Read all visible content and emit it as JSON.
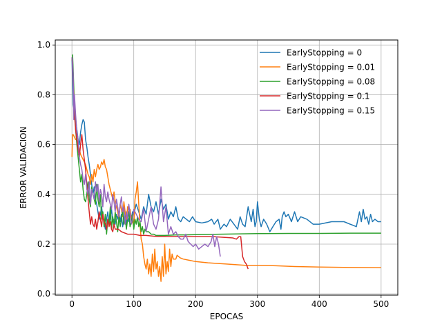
{
  "chart_data": {
    "type": "line",
    "title": "",
    "xlabel": "EPOCAS",
    "ylabel": "ERROR VALIDACION",
    "xlim": [
      -27,
      527
    ],
    "ylim": [
      -0.005,
      1.02
    ],
    "xticks": [
      0,
      100,
      200,
      300,
      400,
      500
    ],
    "yticks": [
      0.0,
      0.2,
      0.4,
      0.6,
      0.8,
      1.0
    ],
    "xtick_labels": [
      "0",
      "100",
      "200",
      "300",
      "400",
      "500"
    ],
    "ytick_labels": [
      "0.0",
      "0.2",
      "0.4",
      "0.6",
      "0.8",
      "1.0"
    ],
    "grid": true,
    "legend_position": "top-right",
    "series": [
      {
        "name": "EarlyStopping = 0",
        "color": "#1f77b4",
        "x": [
          0,
          2,
          4,
          6,
          8,
          10,
          12,
          14,
          16,
          18,
          20,
          22,
          24,
          26,
          28,
          30,
          32,
          34,
          36,
          38,
          40,
          42,
          44,
          46,
          48,
          50,
          52,
          54,
          56,
          58,
          60,
          62,
          64,
          66,
          68,
          70,
          72,
          74,
          76,
          78,
          80,
          82,
          84,
          86,
          88,
          90,
          92,
          94,
          96,
          98,
          100,
          104,
          108,
          112,
          116,
          120,
          124,
          128,
          132,
          136,
          140,
          144,
          148,
          152,
          156,
          160,
          164,
          168,
          172,
          176,
          180,
          185,
          190,
          195,
          200,
          210,
          220,
          226,
          230,
          236,
          240,
          246,
          250,
          256,
          262,
          268,
          272,
          276,
          280,
          285,
          290,
          293,
          296,
          298,
          300,
          303,
          306,
          310,
          315,
          320,
          325,
          330,
          335,
          338,
          340,
          343,
          346,
          350,
          355,
          360,
          365,
          370,
          380,
          390,
          400,
          420,
          440,
          460,
          465,
          468,
          471,
          474,
          477,
          480,
          483,
          486,
          490,
          495,
          500
        ],
        "y": [
          0.95,
          0.76,
          0.73,
          0.7,
          0.66,
          0.62,
          0.6,
          0.65,
          0.68,
          0.7,
          0.69,
          0.62,
          0.59,
          0.55,
          0.52,
          0.48,
          0.44,
          0.4,
          0.43,
          0.38,
          0.36,
          0.33,
          0.3,
          0.32,
          0.35,
          0.31,
          0.29,
          0.26,
          0.3,
          0.33,
          0.28,
          0.31,
          0.34,
          0.29,
          0.3,
          0.28,
          0.32,
          0.3,
          0.33,
          0.29,
          0.32,
          0.27,
          0.3,
          0.33,
          0.28,
          0.31,
          0.29,
          0.34,
          0.3,
          0.33,
          0.32,
          0.36,
          0.33,
          0.3,
          0.35,
          0.32,
          0.4,
          0.35,
          0.33,
          0.37,
          0.32,
          0.38,
          0.34,
          0.36,
          0.3,
          0.33,
          0.31,
          0.35,
          0.3,
          0.29,
          0.31,
          0.3,
          0.29,
          0.31,
          0.29,
          0.285,
          0.29,
          0.3,
          0.28,
          0.3,
          0.26,
          0.28,
          0.27,
          0.3,
          0.28,
          0.26,
          0.31,
          0.28,
          0.27,
          0.35,
          0.29,
          0.34,
          0.27,
          0.29,
          0.37,
          0.3,
          0.27,
          0.3,
          0.28,
          0.25,
          0.27,
          0.29,
          0.3,
          0.26,
          0.31,
          0.33,
          0.31,
          0.32,
          0.29,
          0.33,
          0.29,
          0.31,
          0.3,
          0.28,
          0.28,
          0.29,
          0.29,
          0.27,
          0.33,
          0.29,
          0.34,
          0.3,
          0.31,
          0.28,
          0.32,
          0.29,
          0.3,
          0.29,
          0.29
        ]
      },
      {
        "name": "EarlyStopping = 0.01",
        "color": "#ff7f0e",
        "x": [
          0,
          1,
          2,
          4,
          6,
          8,
          10,
          12,
          14,
          16,
          18,
          20,
          22,
          24,
          26,
          28,
          30,
          32,
          34,
          36,
          38,
          40,
          42,
          44,
          46,
          48,
          50,
          52,
          54,
          56,
          58,
          60,
          62,
          64,
          66,
          68,
          70,
          72,
          74,
          76,
          78,
          80,
          82,
          84,
          86,
          88,
          90,
          92,
          94,
          96,
          98,
          100,
          102,
          104,
          106,
          108,
          110,
          112,
          114,
          116,
          118,
          120,
          122,
          124,
          126,
          128,
          130,
          132,
          134,
          136,
          138,
          140,
          142,
          144,
          146,
          148,
          150,
          152,
          154,
          156,
          158,
          160,
          162,
          164,
          166,
          168,
          170,
          175,
          180,
          190,
          200,
          220,
          250,
          280,
          300,
          330,
          360,
          400,
          450,
          500
        ],
        "y": [
          0.55,
          0.64,
          0.64,
          0.63,
          0.62,
          0.62,
          0.6,
          0.58,
          0.56,
          0.55,
          0.54,
          0.53,
          0.52,
          0.5,
          0.48,
          0.47,
          0.44,
          0.48,
          0.45,
          0.5,
          0.47,
          0.5,
          0.52,
          0.5,
          0.51,
          0.53,
          0.52,
          0.54,
          0.51,
          0.5,
          0.47,
          0.44,
          0.42,
          0.4,
          0.38,
          0.41,
          0.37,
          0.35,
          0.33,
          0.3,
          0.36,
          0.34,
          0.31,
          0.37,
          0.33,
          0.3,
          0.35,
          0.32,
          0.34,
          0.3,
          0.29,
          0.27,
          0.38,
          0.41,
          0.45,
          0.36,
          0.28,
          0.22,
          0.2,
          0.15,
          0.12,
          0.1,
          0.14,
          0.08,
          0.12,
          0.07,
          0.16,
          0.09,
          0.18,
          0.1,
          0.13,
          0.07,
          0.11,
          0.05,
          0.15,
          0.07,
          0.2,
          0.08,
          0.13,
          0.09,
          0.18,
          0.11,
          0.16,
          0.14,
          0.14,
          0.14,
          0.155,
          0.145,
          0.14,
          0.135,
          0.13,
          0.125,
          0.12,
          0.115,
          0.115,
          0.113,
          0.11,
          0.108,
          0.106,
          0.105
        ]
      },
      {
        "name": "EarlyStopping = 0.08",
        "color": "#2ca02c",
        "x": [
          0,
          1,
          2,
          4,
          6,
          8,
          10,
          12,
          14,
          16,
          18,
          20,
          22,
          24,
          26,
          28,
          30,
          32,
          34,
          36,
          38,
          40,
          42,
          44,
          46,
          48,
          50,
          52,
          54,
          56,
          58,
          60,
          62,
          64,
          66,
          68,
          70,
          72,
          74,
          76,
          78,
          80,
          82,
          84,
          86,
          88,
          90,
          92,
          94,
          96,
          98,
          100,
          102,
          104,
          106,
          108,
          110,
          112,
          114,
          116,
          118,
          120,
          124,
          128,
          132,
          136,
          140,
          145,
          150,
          160,
          170,
          180,
          200,
          240,
          300,
          350,
          400,
          450,
          500
        ],
        "y": [
          0.96,
          0.96,
          0.9,
          0.75,
          0.66,
          0.6,
          0.55,
          0.5,
          0.45,
          0.48,
          0.42,
          0.38,
          0.37,
          0.4,
          0.45,
          0.38,
          0.35,
          0.43,
          0.4,
          0.38,
          0.36,
          0.44,
          0.38,
          0.35,
          0.4,
          0.3,
          0.33,
          0.27,
          0.32,
          0.24,
          0.3,
          0.28,
          0.35,
          0.26,
          0.31,
          0.27,
          0.33,
          0.29,
          0.25,
          0.31,
          0.27,
          0.3,
          0.34,
          0.28,
          0.31,
          0.26,
          0.3,
          0.33,
          0.27,
          0.29,
          0.32,
          0.26,
          0.3,
          0.28,
          0.31,
          0.27,
          0.29,
          0.25,
          0.27,
          0.24,
          0.26,
          0.25,
          0.25,
          0.24,
          0.24,
          0.235,
          0.235,
          0.235,
          0.235,
          0.236,
          0.237,
          0.237,
          0.238,
          0.24,
          0.242,
          0.243,
          0.243,
          0.244,
          0.244
        ]
      },
      {
        "name": "EarlyStopping = 0.1",
        "color": "#d62728",
        "x": [
          0,
          1,
          2,
          4,
          6,
          8,
          10,
          12,
          14,
          16,
          18,
          20,
          22,
          24,
          26,
          28,
          30,
          32,
          34,
          36,
          38,
          40,
          42,
          44,
          46,
          48,
          50,
          52,
          54,
          56,
          58,
          60,
          62,
          64,
          66,
          68,
          70,
          75,
          80,
          90,
          100,
          110,
          120,
          140,
          160,
          180,
          200,
          230,
          260,
          266,
          270,
          273,
          276,
          279,
          282,
          285
        ],
        "y": [
          0.95,
          0.92,
          0.85,
          0.72,
          0.66,
          0.62,
          0.58,
          0.55,
          0.6,
          0.64,
          0.58,
          0.54,
          0.5,
          0.44,
          0.38,
          0.33,
          0.28,
          0.31,
          0.28,
          0.27,
          0.3,
          0.26,
          0.29,
          0.33,
          0.3,
          0.27,
          0.32,
          0.29,
          0.28,
          0.26,
          0.3,
          0.27,
          0.29,
          0.26,
          0.25,
          0.28,
          0.26,
          0.26,
          0.25,
          0.24,
          0.24,
          0.235,
          0.235,
          0.23,
          0.23,
          0.23,
          0.23,
          0.23,
          0.225,
          0.22,
          0.23,
          0.23,
          0.15,
          0.13,
          0.12,
          0.1
        ]
      },
      {
        "name": "EarlyStopping = 0.15",
        "color": "#9467bd",
        "x": [
          0,
          1,
          2,
          3,
          4,
          6,
          8,
          10,
          12,
          14,
          16,
          18,
          20,
          22,
          24,
          26,
          28,
          30,
          32,
          34,
          36,
          38,
          40,
          42,
          44,
          46,
          48,
          50,
          52,
          54,
          56,
          58,
          60,
          62,
          64,
          66,
          68,
          70,
          72,
          74,
          76,
          78,
          80,
          82,
          84,
          86,
          88,
          90,
          92,
          94,
          96,
          98,
          100,
          104,
          108,
          112,
          116,
          120,
          124,
          128,
          132,
          136,
          140,
          144,
          148,
          152,
          156,
          160,
          164,
          168,
          172,
          176,
          180,
          184,
          188,
          192,
          196,
          200,
          205,
          210,
          215,
          220,
          225,
          228,
          231,
          234,
          237,
          240
        ],
        "y": [
          0.95,
          0.93,
          0.88,
          0.7,
          0.8,
          0.72,
          0.65,
          0.62,
          0.55,
          0.52,
          0.5,
          0.46,
          0.44,
          0.48,
          0.42,
          0.4,
          0.45,
          0.36,
          0.42,
          0.4,
          0.38,
          0.45,
          0.41,
          0.44,
          0.37,
          0.42,
          0.4,
          0.35,
          0.44,
          0.39,
          0.37,
          0.41,
          0.38,
          0.36,
          0.34,
          0.4,
          0.37,
          0.33,
          0.38,
          0.35,
          0.31,
          0.36,
          0.39,
          0.33,
          0.35,
          0.28,
          0.33,
          0.3,
          0.36,
          0.32,
          0.28,
          0.3,
          0.34,
          0.32,
          0.3,
          0.29,
          0.34,
          0.25,
          0.3,
          0.35,
          0.28,
          0.26,
          0.3,
          0.43,
          0.29,
          0.35,
          0.24,
          0.27,
          0.24,
          0.25,
          0.23,
          0.22,
          0.22,
          0.24,
          0.21,
          0.2,
          0.19,
          0.2,
          0.18,
          0.19,
          0.2,
          0.19,
          0.21,
          0.24,
          0.19,
          0.23,
          0.2,
          0.15
        ]
      }
    ]
  }
}
